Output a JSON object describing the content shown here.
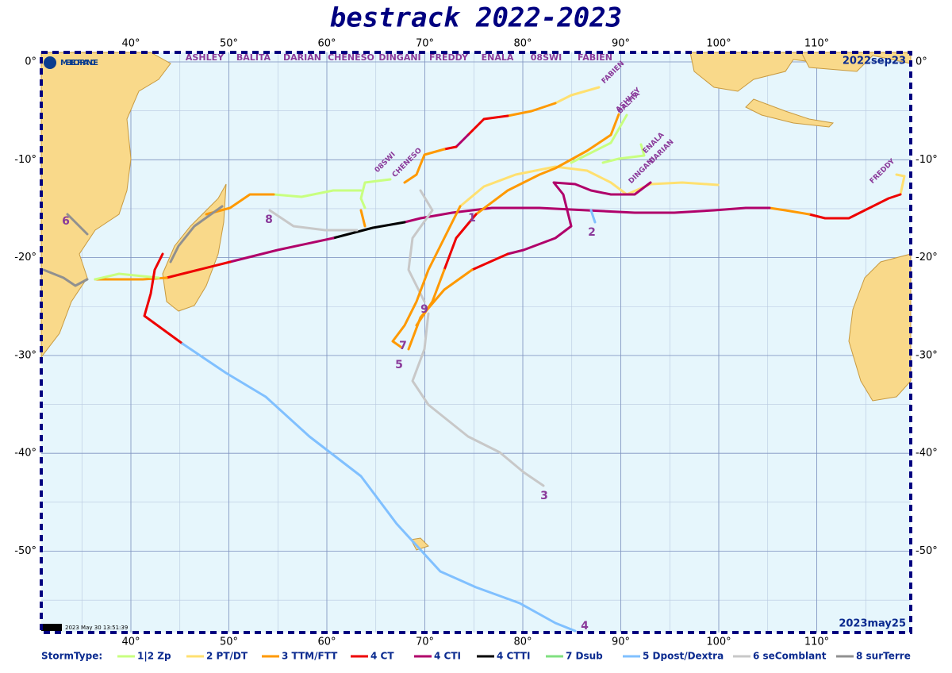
{
  "title": "bestrack 2022-2023",
  "logo": "METEO FRANCE",
  "start_date": "2022sep23",
  "end_date": "2023may25",
  "timestamp": "2023 May 30 13:51:39",
  "storm_names": [
    "ASHLEY",
    "BALITA",
    "DARIAN",
    "CHENESO",
    "DINGANI",
    "FREDDY",
    "ENALA",
    "08SWI",
    "FABIEN"
  ],
  "lon_ticks": [
    {
      "value": 40,
      "label": "40°"
    },
    {
      "value": 50,
      "label": "50°"
    },
    {
      "value": 60,
      "label": "60°"
    },
    {
      "value": 70,
      "label": "70°"
    },
    {
      "value": 80,
      "label": "80°"
    },
    {
      "value": 90,
      "label": "90°"
    },
    {
      "value": 100,
      "label": "100°"
    },
    {
      "value": 110,
      "label": "110°"
    }
  ],
  "lat_ticks": [
    {
      "value": 0,
      "label": "0°"
    },
    {
      "value": -10,
      "label": "-10°"
    },
    {
      "value": -20,
      "label": "-20°"
    },
    {
      "value": -30,
      "label": "-30°"
    },
    {
      "value": -40,
      "label": "-40°"
    },
    {
      "value": -50,
      "label": "-50°"
    }
  ],
  "track_names": [
    "FABIEN",
    "ASHLEY",
    "BALITA",
    "ENALA",
    "DARIAN",
    "DINGANI",
    "08SWI",
    "CHENESO",
    "FREDDY"
  ],
  "track_numbers": [
    "1",
    "2",
    "3",
    "4",
    "5",
    "6",
    "7",
    "8",
    "9"
  ],
  "legend_title": "StormType:",
  "legend": [
    {
      "label": "1|2 Zp",
      "color": "#c8ff80"
    },
    {
      "label": "2 PT/DT",
      "color": "#ffe070"
    },
    {
      "label": "3 TTM/FTT",
      "color": "#ff9900"
    },
    {
      "label": "4 CT",
      "color": "#ee0000"
    },
    {
      "label": "4 CTI",
      "color": "#b0006a"
    },
    {
      "label": "4 CTTI",
      "color": "#000000"
    },
    {
      "label": "7 Dsub",
      "color": "#80e080"
    },
    {
      "label": "5 Dpost/Dextra",
      "color": "#80c0ff"
    },
    {
      "label": "6 seComblant",
      "color": "#c8c8c8"
    },
    {
      "label": "8 surTerre",
      "color": "#909090"
    }
  ]
}
